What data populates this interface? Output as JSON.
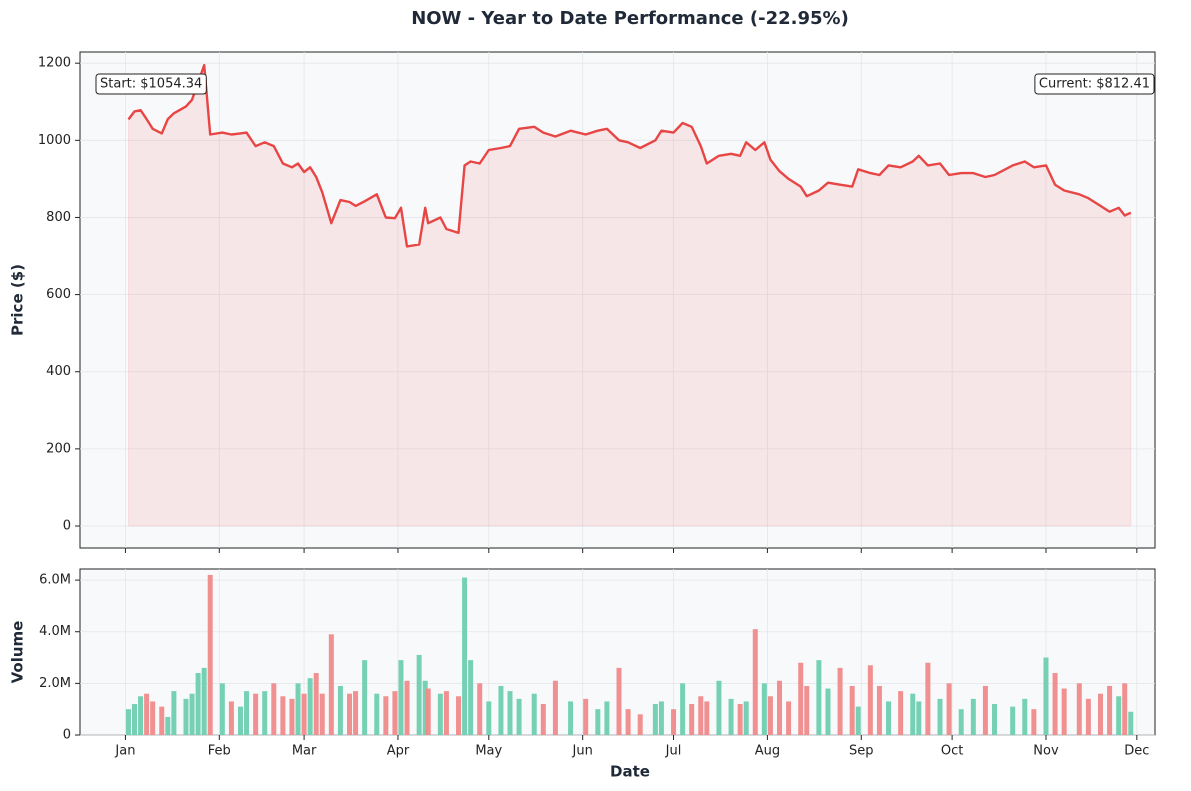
{
  "chart_data": {
    "type": "line",
    "title": "NOW - Year to Date Performance (-22.95%)",
    "y_label": "Price ($)",
    "y2_label": "Volume",
    "x_label": "Date",
    "annotations": [
      "Start: $1054.34",
      "Current: $812.41"
    ],
    "x": [
      2,
      4,
      6,
      8,
      10,
      13,
      15,
      17,
      21,
      23,
      25,
      27,
      29,
      33,
      36,
      39,
      41,
      44,
      47,
      50,
      53,
      56,
      58,
      60,
      62,
      64,
      66,
      69,
      72,
      75,
      77,
      80,
      84,
      87,
      90,
      92,
      94,
      98,
      100,
      101,
      105,
      107,
      111,
      113,
      115,
      118,
      121,
      125,
      128,
      131,
      136,
      139,
      143,
      148,
      153,
      157,
      160,
      164,
      167,
      171,
      176,
      178,
      182,
      185,
      188,
      191,
      193,
      197,
      201,
      204,
      206,
      209,
      212,
      214,
      217,
      220,
      224,
      226,
      230,
      233,
      237,
      241,
      243,
      247,
      250,
      253,
      257,
      261,
      263,
      266,
      270,
      273,
      277,
      281,
      285,
      288,
      294,
      298,
      301,
      305,
      308,
      311,
      316,
      319,
      323,
      326,
      329,
      331,
      333
    ],
    "series": [
      {
        "color": "#e84545",
        "values": [
          1054.34,
          1075,
          1078,
          1055,
          1030,
          1018,
          1055,
          1070,
          1088,
          1105,
          1150,
          1195,
          1015,
          1020,
          1015,
          1018,
          1020,
          985,
          995,
          985,
          940,
          930,
          940,
          918,
          930,
          905,
          865,
          785,
          845,
          840,
          830,
          842,
          860,
          800,
          798,
          825,
          725,
          730,
          825,
          785,
          800,
          770,
          760,
          935,
          945,
          940,
          975,
          980,
          985,
          1030,
          1035,
          1020,
          1010,
          1025,
          1015,
          1025,
          1030,
          1000,
          995,
          980,
          1000,
          1025,
          1020,
          1045,
          1035,
          985,
          940,
          960,
          965,
          960,
          995,
          975,
          995,
          950,
          920,
          900,
          880,
          855,
          870,
          890,
          885,
          880,
          925,
          915,
          910,
          935,
          930,
          945,
          960,
          935,
          940,
          910,
          915,
          915,
          905,
          910,
          935,
          945,
          930,
          935,
          885,
          870,
          860,
          850,
          830,
          815,
          825,
          805,
          812.41
        ]
      },
      {
        "type": "bar",
        "up_color": "#6fcfb0",
        "down_color": "#f08a8a",
        "values": [
          1.0,
          1.2,
          1.5,
          1.6,
          1.3,
          1.1,
          0.7,
          1.7,
          1.4,
          1.6,
          2.4,
          2.6,
          6.2,
          2.0,
          1.3,
          1.1,
          1.7,
          1.6,
          1.7,
          2.0,
          1.5,
          1.4,
          2.0,
          1.6,
          2.2,
          2.4,
          1.6,
          3.9,
          1.9,
          1.6,
          1.7,
          2.9,
          1.6,
          1.5,
          1.7,
          2.9,
          2.1,
          3.1,
          2.1,
          1.8,
          1.6,
          1.7,
          1.5,
          6.1,
          2.9,
          2.0,
          1.3,
          1.9,
          1.7,
          1.4,
          1.6,
          1.2,
          2.1,
          1.3,
          1.4,
          1.0,
          1.3,
          2.6,
          1.0,
          0.8,
          1.2,
          1.3,
          1.0,
          2.0,
          1.2,
          1.5,
          1.3,
          2.1,
          1.4,
          1.2,
          1.3,
          4.1,
          2.0,
          1.5,
          2.1,
          1.3,
          2.8,
          1.9,
          2.9,
          1.8,
          2.6,
          1.9,
          1.1,
          2.7,
          1.9,
          1.3,
          1.7,
          1.6,
          1.3,
          2.8,
          1.4,
          2.0,
          1.0,
          1.4,
          1.9,
          1.2,
          1.1,
          1.4,
          1.0,
          3.0,
          2.4,
          1.8,
          2.0,
          1.4,
          1.6,
          1.9,
          1.5,
          2.0,
          0.9
        ]
      }
    ],
    "area_color": "#e84545",
    "xlim": [
      -14,
      341
    ],
    "xticks": [
      {
        "value": 1,
        "label": "Jan"
      },
      {
        "value": 32,
        "label": "Feb"
      },
      {
        "value": 60,
        "label": "Mar"
      },
      {
        "value": 91,
        "label": "Apr"
      },
      {
        "value": 121,
        "label": "May"
      },
      {
        "value": 152,
        "label": "Jun"
      },
      {
        "value": 182,
        "label": "Jul"
      },
      {
        "value": 213,
        "label": "Aug"
      },
      {
        "value": 244,
        "label": "Sep"
      },
      {
        "value": 274,
        "label": "Oct"
      },
      {
        "value": 305,
        "label": "Nov"
      },
      {
        "value": 335,
        "label": "Dec"
      }
    ],
    "ylim": [
      -57,
      1229
    ],
    "yticks": [
      0,
      200,
      400,
      600,
      800,
      1000,
      1200
    ],
    "y2lim": [
      0,
      6.43
    ],
    "y2ticks": [
      0,
      {
        "value": 2,
        "label": "2.0M"
      },
      {
        "value": 4,
        "label": "4.0M"
      },
      {
        "value": 6,
        "label": "6.0M"
      }
    ],
    "grid": true
  }
}
